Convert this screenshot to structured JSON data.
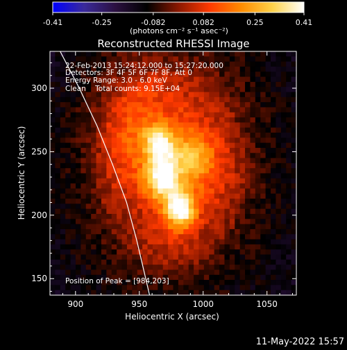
{
  "colors": {
    "background": "#000000",
    "text": "#ffffff",
    "colormap": [
      "#0000ff",
      "#3a2a9a",
      "#2b1040",
      "#000000",
      "#8a1800",
      "#ff3a00",
      "#ff8c00",
      "#ffd24a",
      "#ffffff"
    ]
  },
  "chart_data": {
    "type": "heatmap",
    "title": "Reconstructed RHESSI Image",
    "xlabel": "Heliocentric X (arcsec)",
    "ylabel": "Heliocentric Y (arcsec)",
    "xlim": [
      880,
      1073
    ],
    "ylim": [
      137,
      329
    ],
    "x_ticks": [
      900,
      950,
      1000,
      1050
    ],
    "y_ticks": [
      150,
      200,
      250,
      300
    ],
    "colorbar": {
      "range": [
        -0.41,
        0.41
      ],
      "ticks": [
        "-0.41",
        "-0.25",
        "-0.082",
        "0.082",
        "0.25",
        "0.41"
      ],
      "unit_label": "(photons cm⁻² s⁻¹ asec⁻²)"
    },
    "annotations": {
      "time_range": "22-Feb-2013 15:24:12.000 to 15:27:20.000",
      "detectors": "Detectors: 3F 4F 5F 6F 7F 8F, Att 0",
      "energy": "Energy Range: 3.0 - 6.0 keV",
      "clean": "Clean    Total counts: 9.15E+04",
      "peak": "Position of Peak = [984,203]"
    },
    "peak_position": [
      984,
      203
    ],
    "limb_curve": {
      "description": "solar limb",
      "points": [
        [
          888,
          329
        ],
        [
          903,
          300
        ],
        [
          917,
          270
        ],
        [
          929,
          240
        ],
        [
          940,
          210
        ],
        [
          948,
          180
        ],
        [
          955,
          150
        ],
        [
          958,
          137
        ]
      ]
    },
    "sources": [
      {
        "x": 982,
        "y": 205,
        "amp": 0.41,
        "sx": 8,
        "sy": 10
      },
      {
        "x": 968,
        "y": 230,
        "amp": 0.36,
        "sx": 9,
        "sy": 13
      },
      {
        "x": 965,
        "y": 258,
        "amp": 0.24,
        "sx": 8,
        "sy": 9
      },
      {
        "x": 990,
        "y": 245,
        "amp": 0.18,
        "sx": 12,
        "sy": 14
      },
      {
        "x": 945,
        "y": 255,
        "amp": 0.14,
        "sx": 22,
        "sy": 40
      },
      {
        "x": 980,
        "y": 270,
        "amp": 0.12,
        "sx": 35,
        "sy": 40
      },
      {
        "x": 1005,
        "y": 225,
        "amp": 0.1,
        "sx": 20,
        "sy": 28
      },
      {
        "x": 975,
        "y": 180,
        "amp": 0.09,
        "sx": 22,
        "sy": 18
      }
    ]
  },
  "footer": {
    "date": "11-May-2022 15:57"
  }
}
